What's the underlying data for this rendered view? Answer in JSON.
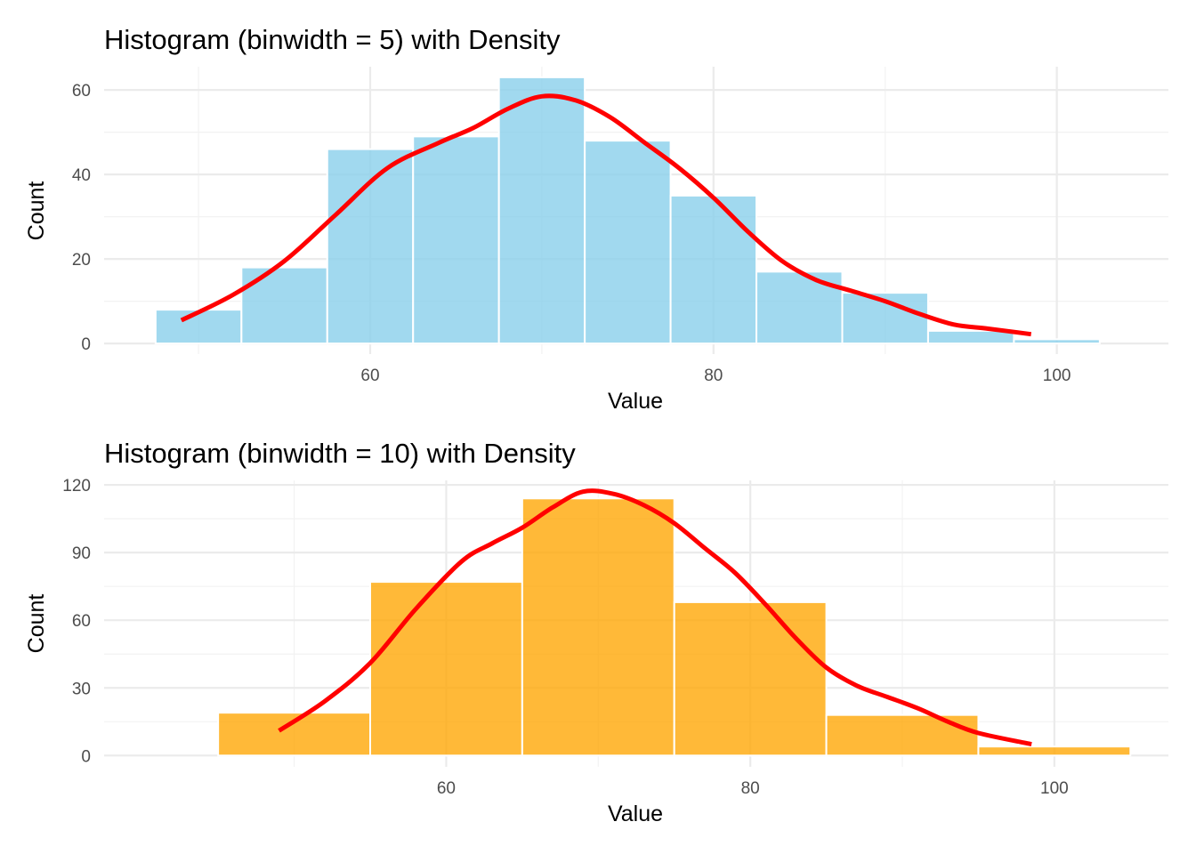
{
  "chart_data": [
    {
      "type": "bar",
      "title": "Histogram (binwidth = 5) with Density",
      "xlabel": "Value",
      "ylabel": "Count",
      "bar_color": "#87CEEB",
      "density_color": "#FF0000",
      "binwidth": 5,
      "xlim": [
        44.5,
        106.5
      ],
      "ylim": [
        -2.5,
        65.5
      ],
      "x_ticks": [
        60,
        80,
        100
      ],
      "y_ticks": [
        0,
        20,
        40,
        60
      ],
      "bins": [
        {
          "x0": 47.5,
          "x1": 52.5,
          "count": 8
        },
        {
          "x0": 52.5,
          "x1": 57.5,
          "count": 18
        },
        {
          "x0": 57.5,
          "x1": 62.5,
          "count": 46
        },
        {
          "x0": 62.5,
          "x1": 67.5,
          "count": 49
        },
        {
          "x0": 67.5,
          "x1": 72.5,
          "count": 63
        },
        {
          "x0": 72.5,
          "x1": 77.5,
          "count": 48
        },
        {
          "x0": 77.5,
          "x1": 82.5,
          "count": 35
        },
        {
          "x0": 82.5,
          "x1": 87.5,
          "count": 17
        },
        {
          "x0": 87.5,
          "x1": 92.5,
          "count": 12
        },
        {
          "x0": 92.5,
          "x1": 97.5,
          "count": 3
        },
        {
          "x0": 97.5,
          "x1": 102.5,
          "count": 1
        }
      ],
      "density_curve": {
        "x": [
          49,
          52,
          55,
          58,
          61,
          64,
          66,
          68,
          70,
          72,
          74,
          76,
          78,
          80,
          82,
          84,
          86,
          88,
          90,
          92,
          94,
          96,
          98.5
        ],
        "y": [
          5.5,
          11.5,
          19.5,
          30.5,
          41.5,
          47.5,
          51,
          55.5,
          58.5,
          57.5,
          53.5,
          47.5,
          41.5,
          34.5,
          26.5,
          19.5,
          15,
          12.5,
          10,
          7,
          4.5,
          3.5,
          2.2
        ]
      }
    },
    {
      "type": "bar",
      "title": "Histogram (binwidth = 10) with Density",
      "xlabel": "Value",
      "ylabel": "Count",
      "bar_color": "#FFA500",
      "density_color": "#FF0000",
      "binwidth": 10,
      "xlim": [
        37.5,
        107.5
      ],
      "ylim": [
        -5,
        122
      ],
      "x_ticks": [
        60,
        80,
        100
      ],
      "y_ticks": [
        0,
        30,
        60,
        90,
        120
      ],
      "bins": [
        {
          "x0": 45,
          "x1": 55,
          "count": 19
        },
        {
          "x0": 55,
          "x1": 65,
          "count": 77
        },
        {
          "x0": 65,
          "x1": 75,
          "count": 114
        },
        {
          "x0": 75,
          "x1": 85,
          "count": 68
        },
        {
          "x0": 85,
          "x1": 95,
          "count": 18
        },
        {
          "x0": 95,
          "x1": 105,
          "count": 4
        }
      ],
      "density_curve": {
        "x": [
          49,
          52,
          55,
          58,
          61,
          63,
          65,
          67,
          69,
          71,
          73,
          75,
          77,
          79,
          81,
          83,
          85,
          87,
          89,
          91,
          93,
          95,
          98.5
        ],
        "y": [
          11,
          24,
          41,
          65,
          86,
          94,
          101,
          110,
          117,
          116,
          111,
          103,
          92,
          81,
          67,
          52,
          39,
          31,
          26,
          21,
          15,
          10,
          5
        ]
      }
    }
  ]
}
